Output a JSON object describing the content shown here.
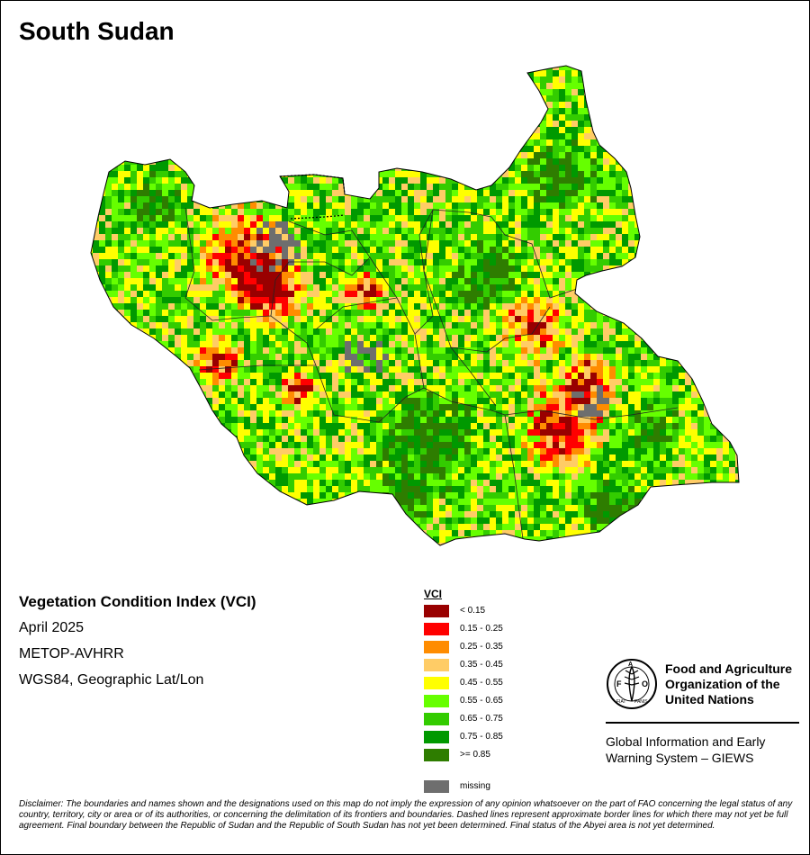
{
  "map": {
    "title": "South Sudan"
  },
  "info": {
    "heading": "Vegetation Condition Index (VCI)",
    "date": "April 2025",
    "sensor": "METOP-AVHRR",
    "projection": "WGS84, Geographic Lat/Lon"
  },
  "legend": {
    "title": "VCI",
    "classes": [
      {
        "label": "< 0.15",
        "color": "#990000"
      },
      {
        "label": "0.15 - 0.25",
        "color": "#ff0000"
      },
      {
        "label": "0.25 - 0.35",
        "color": "#ff8c00"
      },
      {
        "label": "0.35 - 0.45",
        "color": "#ffcc66"
      },
      {
        "label": "0.45 - 0.55",
        "color": "#ffff00"
      },
      {
        "label": "0.55 - 0.65",
        "color": "#66ff00"
      },
      {
        "label": "0.65 - 0.75",
        "color": "#33cc00"
      },
      {
        "label": "0.75 - 0.85",
        "color": "#009900"
      },
      {
        "label": ">= 0.85",
        "color": "#2e7d00"
      }
    ],
    "missing": {
      "label": "missing",
      "color": "#6e6e6e"
    }
  },
  "fao": {
    "org_line1": "Food and Agriculture",
    "org_line2": "Organization of the",
    "org_line3": "United Nations",
    "giews_line1": "Global Information and Early",
    "giews_line2": "Warning System – GIEWS",
    "logo_text": "FAO FIAT PANIS"
  },
  "disclaimer": "Disclaimer: The boundaries and names shown and the designations used on this map do not imply the expression of any opinion whatsoever on the part of FAO concerning the legal status of any country, territory, city or area or of its authorities, or concerning the delimitation of its frontiers and boundaries. Dashed lines represent approximate border lines for which there may not yet be full agreement.  Final boundary between the Republic of Sudan and the Republic of South Sudan has not yet been determined. Final status of the Abyei area is not yet determined."
}
